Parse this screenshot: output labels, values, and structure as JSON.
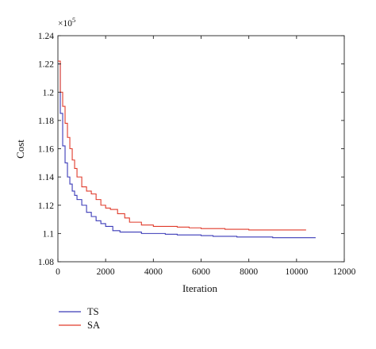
{
  "chart_data": {
    "type": "line",
    "title": "",
    "xlabel": "Iteration",
    "ylabel": "Cost",
    "xlim": [
      0,
      12000
    ],
    "ylim": [
      1.08,
      1.24
    ],
    "y_multiplier_base": "×10",
    "y_multiplier_exponent": "5",
    "xticks": [
      0,
      2000,
      4000,
      6000,
      8000,
      10000,
      12000
    ],
    "xtick_labels": [
      "0",
      "2000",
      "4000",
      "6000",
      "8000",
      "10000",
      "12000"
    ],
    "yticks": [
      1.08,
      1.1,
      1.12,
      1.14,
      1.16,
      1.18,
      1.2,
      1.22,
      1.24
    ],
    "ytick_labels": [
      "1.08",
      "1.1",
      "1.12",
      "1.14",
      "1.16",
      "1.18",
      "1.2",
      "1.22",
      "1.24"
    ],
    "grid": false,
    "legend_position": "below plot, bottom-left",
    "series": [
      {
        "name": "TS",
        "color": "#3a3ab8",
        "x": [
          0,
          100,
          200,
          300,
          400,
          500,
          600,
          700,
          800,
          1000,
          1200,
          1400,
          1600,
          1800,
          2000,
          2300,
          2600,
          3000,
          3500,
          4000,
          4500,
          5000,
          5500,
          6000,
          6500,
          7000,
          7500,
          8000,
          9000,
          10000,
          10800
        ],
        "y": [
          1.22,
          1.185,
          1.162,
          1.15,
          1.14,
          1.135,
          1.13,
          1.127,
          1.124,
          1.12,
          1.115,
          1.112,
          1.109,
          1.107,
          1.105,
          1.102,
          1.101,
          1.101,
          1.1,
          1.1,
          1.0995,
          1.099,
          1.099,
          1.0985,
          1.098,
          1.098,
          1.0975,
          1.0975,
          1.097,
          1.097,
          1.097
        ]
      },
      {
        "name": "SA",
        "color": "#e03a2a",
        "x": [
          0,
          100,
          200,
          300,
          400,
          500,
          600,
          700,
          800,
          1000,
          1200,
          1400,
          1600,
          1800,
          2000,
          2200,
          2500,
          2800,
          3000,
          3500,
          4000,
          4500,
          5000,
          5500,
          6000,
          7000,
          8000,
          9000,
          10000,
          10400
        ],
        "y": [
          1.222,
          1.2,
          1.19,
          1.178,
          1.168,
          1.16,
          1.152,
          1.146,
          1.14,
          1.133,
          1.13,
          1.128,
          1.124,
          1.12,
          1.118,
          1.117,
          1.114,
          1.111,
          1.108,
          1.106,
          1.105,
          1.105,
          1.1045,
          1.104,
          1.1035,
          1.103,
          1.1025,
          1.1025,
          1.1025,
          1.1025
        ]
      }
    ]
  }
}
